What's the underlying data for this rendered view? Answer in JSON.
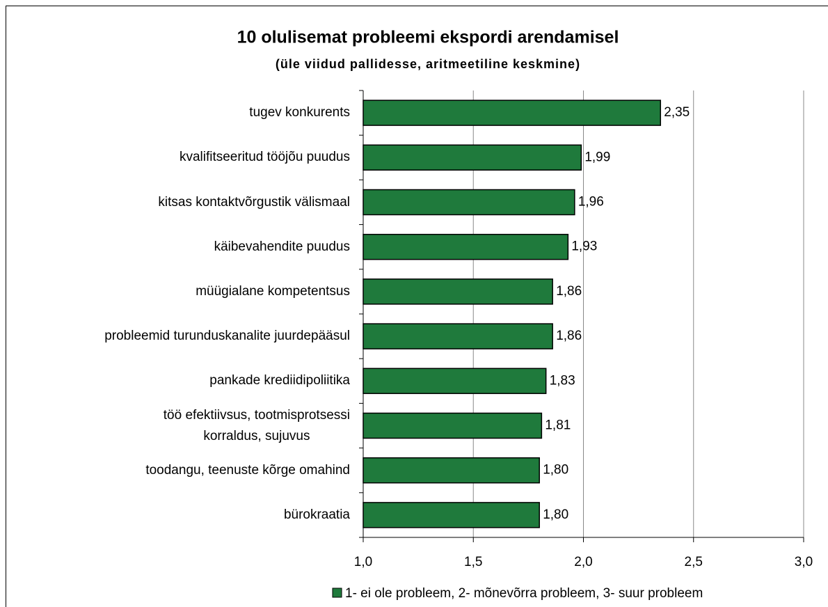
{
  "chart_data": {
    "type": "barh",
    "title": "10 olulisemat probleemi ekspordi arendamisel",
    "subtitle": "(üle viidud pallidesse, aritmeetiline keskmine)",
    "categories": [
      "tugev konkurents",
      "kvalifitseeritud tööjõu puudus",
      "kitsas kontaktvõrgustik välismaal",
      "käibevahendite puudus",
      "müügialane kompetentsus",
      "probleemid turunduskanalite juurdepääsul",
      "pankade krediidipoliitika",
      "töö efektiivsus, tootmisprotsessi \nkorraldus, sujuvus",
      "toodangu, teenuste kõrge omahind",
      "bürokraatia"
    ],
    "series": [
      {
        "name": "1- ei ole probleem, 2- mõnevõrra probleem, 3- suur probleem",
        "color": "#1f7a3c",
        "values": [
          2.35,
          1.99,
          1.96,
          1.93,
          1.86,
          1.86,
          1.83,
          1.81,
          1.8,
          1.8
        ],
        "value_labels": [
          "2,35",
          "1,99",
          "1,96",
          "1,93",
          "1,86",
          "1,86",
          "1,83",
          "1,81",
          "1,80",
          "1,80"
        ]
      }
    ],
    "xlim": [
      1.0,
      3.0
    ],
    "xticks": [
      {
        "value": 1.0,
        "label": "1,0"
      },
      {
        "value": 1.5,
        "label": "1,5"
      },
      {
        "value": 2.0,
        "label": "2,0"
      },
      {
        "value": 2.5,
        "label": "2,5"
      },
      {
        "value": 3.0,
        "label": "3,0"
      }
    ],
    "grid": true,
    "legend": "bottom-right"
  }
}
